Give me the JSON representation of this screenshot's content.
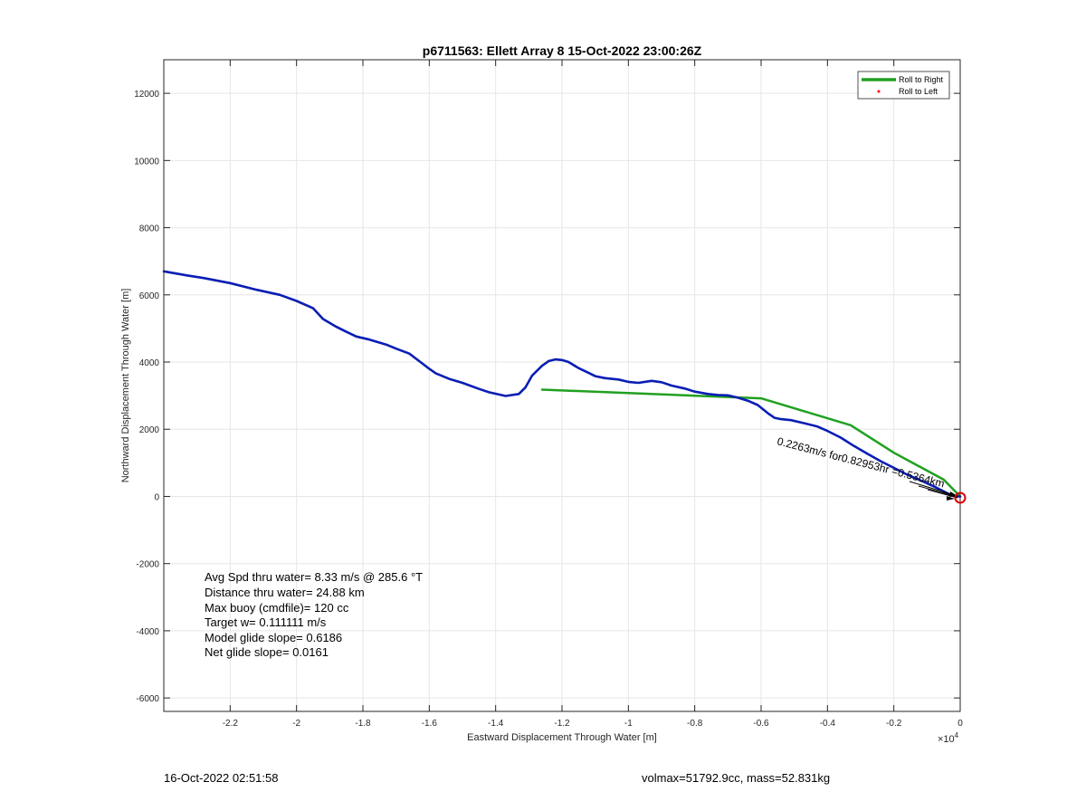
{
  "chart_data": {
    "type": "line",
    "title": "p6711563: Ellett Array 8 15-Oct-2022 23:00:26Z",
    "xlabel": "Eastward Displacement Through Water [m]",
    "ylabel": "Northward Displacement Through Water [m]",
    "x_multiplier": "×10",
    "x_exponent": "4",
    "xlim": [
      -2.4,
      0
    ],
    "ylim": [
      -6400,
      13000
    ],
    "x_ticks": [
      -2.2,
      -2,
      -1.8,
      -1.6,
      -1.4,
      -1.2,
      -1,
      -0.8,
      -0.6,
      -0.4,
      -0.2,
      0
    ],
    "x_tick_labels": [
      "-2.2",
      "-2",
      "-1.8",
      "-1.6",
      "-1.4",
      "-1.2",
      "-1",
      "-0.8",
      "-0.6",
      "-0.4",
      "-0.2",
      "0"
    ],
    "y_ticks": [
      -6000,
      -4000,
      -2000,
      0,
      2000,
      4000,
      6000,
      8000,
      10000,
      12000
    ],
    "y_tick_labels": [
      "-6000",
      "-4000",
      "-2000",
      "0",
      "2000",
      "4000",
      "6000",
      "8000",
      "10000",
      "12000"
    ],
    "grid": true,
    "legend_position": "top-right",
    "series": [
      {
        "name": "Roll to Right",
        "color": "#20a020",
        "x": [
          -1.26,
          -0.6,
          -0.33,
          -0.2,
          -0.05,
          0
        ],
        "y": [
          3180,
          2920,
          2120,
          1300,
          500,
          0
        ]
      },
      {
        "name": "Roll to Left",
        "color": "#ff0000",
        "x": [],
        "y": []
      },
      {
        "name": "",
        "color": "#0a1eb4",
        "x": [
          -2.4,
          -2.33,
          -2.28,
          -2.2,
          -2.12,
          -2.05,
          -2.0,
          -1.95,
          -1.92,
          -1.88,
          -1.85,
          -1.82,
          -1.78,
          -1.73,
          -1.7,
          -1.66,
          -1.62,
          -1.6,
          -1.58,
          -1.54,
          -1.5,
          -1.45,
          -1.42,
          -1.37,
          -1.33,
          -1.31,
          -1.29,
          -1.26,
          -1.24,
          -1.22,
          -1.2,
          -1.18,
          -1.15,
          -1.12,
          -1.1,
          -1.07,
          -1.03,
          -1.0,
          -0.97,
          -0.93,
          -0.9,
          -0.87,
          -0.83,
          -0.8,
          -0.76,
          -0.73,
          -0.7,
          -0.67,
          -0.64,
          -0.61,
          -0.58,
          -0.56,
          -0.54,
          -0.51,
          -0.47,
          -0.43,
          -0.4,
          -0.36,
          -0.32,
          -0.28,
          -0.24,
          -0.2,
          -0.16,
          -0.12,
          -0.08,
          -0.05,
          -0.03,
          -0.01,
          0
        ],
        "y": [
          6700,
          6580,
          6500,
          6350,
          6150,
          6000,
          5820,
          5600,
          5280,
          5050,
          4900,
          4760,
          4670,
          4520,
          4400,
          4250,
          3950,
          3800,
          3660,
          3500,
          3380,
          3200,
          3100,
          2990,
          3050,
          3250,
          3600,
          3890,
          4030,
          4080,
          4060,
          4000,
          3820,
          3680,
          3580,
          3520,
          3480,
          3410,
          3380,
          3440,
          3400,
          3300,
          3210,
          3120,
          3050,
          3020,
          3010,
          2940,
          2850,
          2720,
          2480,
          2340,
          2300,
          2270,
          2180,
          2080,
          1950,
          1750,
          1500,
          1270,
          1050,
          850,
          650,
          480,
          300,
          150,
          50,
          0,
          0
        ]
      }
    ],
    "annotations": [
      {
        "text": "Avg Spd thru water=  8.33 m/s @ 285.6 °T"
      },
      {
        "text": "Distance thru water= 24.88 km"
      },
      {
        "text": "Max buoy (cmdfile)= 120 cc"
      },
      {
        "text": "Target w= 0.111111 m/s"
      },
      {
        "text": "Model glide slope= 0.6186"
      },
      {
        "text": "Net glide slope= 0.0161"
      }
    ],
    "current_label": "0.2263m/s for0.82953hr =0.5364km"
  },
  "footer": {
    "date": "16-Oct-2022 02:51:58",
    "info": "volmax=51792.9cc, mass=52.831kg"
  }
}
